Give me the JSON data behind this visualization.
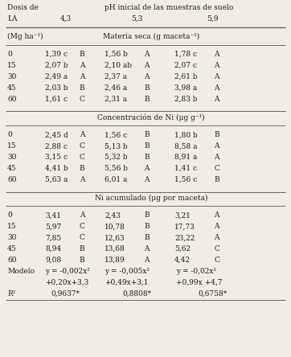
{
  "title_row1": "Dosis de",
  "title_col_header": "pH inicial de las muestras de suelo",
  "col_la": "LA",
  "col_ph1": "4,3",
  "col_ph2": "5,3",
  "col_ph3": "5,9",
  "unit_row": "(Mg ha⁻¹)",
  "section1_title": "Materia seca (g maceta⁻¹)",
  "section2_title": "Concentración de Ni (μg g⁻¹)",
  "section3_title": "Ni acumulado (μg por maceta)",
  "section1_data": [
    [
      "0",
      "1,39 c",
      "B",
      "1,56 b",
      "A",
      "1,78 c",
      "A"
    ],
    [
      "15",
      "2,07 b",
      "A",
      "2,10 ab",
      "A",
      "2,07 c",
      "A"
    ],
    [
      "30",
      "2,49 a",
      "A",
      "2,37 a",
      "A",
      "2,61 b",
      "A"
    ],
    [
      "45",
      "2,03 b",
      "B",
      "2,46 a",
      "B",
      "3,98 a",
      "A"
    ],
    [
      "60",
      "1,61 c",
      "C",
      "2,31 a",
      "B",
      "2,83 b",
      "A"
    ]
  ],
  "section2_data": [
    [
      "0",
      "2,45 d",
      "A",
      "1,56 c",
      "B",
      "1,80 b",
      "B"
    ],
    [
      "15",
      "2,88 c",
      "C",
      "5,13 b",
      "B",
      "8,58 a",
      "A"
    ],
    [
      "30",
      "3,15 c",
      "C",
      "5,32 b",
      "B",
      "8,91 a",
      "A"
    ],
    [
      "45",
      "4,41 b",
      "B",
      "5,56 b",
      "A",
      "1,41 c",
      "C"
    ],
    [
      "60",
      "5,63 a",
      "A",
      "6,01 a",
      "A",
      "1,56 c",
      "B"
    ]
  ],
  "section3_data": [
    [
      "0",
      "3,41",
      "A",
      "2,43",
      "B",
      "3,21",
      "A"
    ],
    [
      "15",
      "5,97",
      "C",
      "10,78",
      "B",
      "17,73",
      "A"
    ],
    [
      "30",
      "7,85",
      "C",
      "12,63",
      "B",
      "23,22",
      "A"
    ],
    [
      "45",
      "8,94",
      "B",
      "13,68",
      "A",
      "5,62",
      "C"
    ],
    [
      "60",
      "9,08",
      "B",
      "13,89",
      "A",
      "4,42",
      "C"
    ]
  ],
  "model_label": "Modelo",
  "model_line1": [
    "y = -0,002x²",
    "y = -0,005x²",
    "y = -0,02x²"
  ],
  "model_line2": [
    "+0,20x+3,3",
    "+0,49x+3,1",
    "+0,99x +4,7"
  ],
  "r2_label": "R²",
  "r2_values": [
    "0,9637*",
    "0,8808*",
    "0,6758*"
  ],
  "bg_color": "#f2ede4",
  "text_color": "#1a1a1a",
  "line_color": "#666666"
}
